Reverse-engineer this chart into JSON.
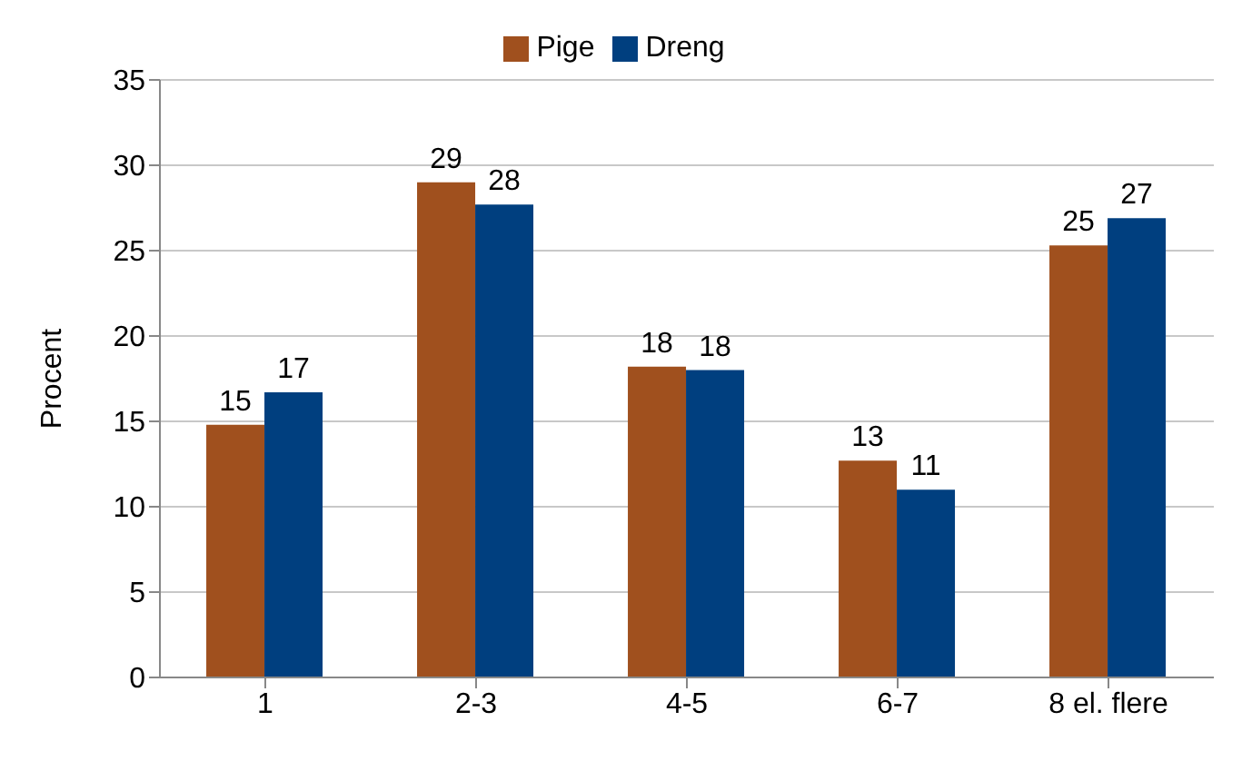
{
  "chart_data": {
    "type": "bar",
    "ylabel": "Procent",
    "categories": [
      "1",
      "2-3",
      "4-5",
      "6-7",
      "8 el. flere"
    ],
    "series": [
      {
        "name": "Pige",
        "color": "#a0501e",
        "values": [
          14.8,
          29.0,
          18.2,
          12.7,
          25.3
        ],
        "value_labels": [
          "15",
          "29",
          "18",
          "13",
          "25"
        ]
      },
      {
        "name": "Dreng",
        "color": "#003f7f",
        "values": [
          16.7,
          27.7,
          18.0,
          11.0,
          26.9
        ],
        "value_labels": [
          "17",
          "28",
          "18",
          "11",
          "27"
        ]
      }
    ],
    "ylim": [
      0,
      35
    ],
    "yticks": [
      0,
      5,
      10,
      15,
      20,
      25,
      30,
      35
    ],
    "grid": "y",
    "legend": "top"
  }
}
